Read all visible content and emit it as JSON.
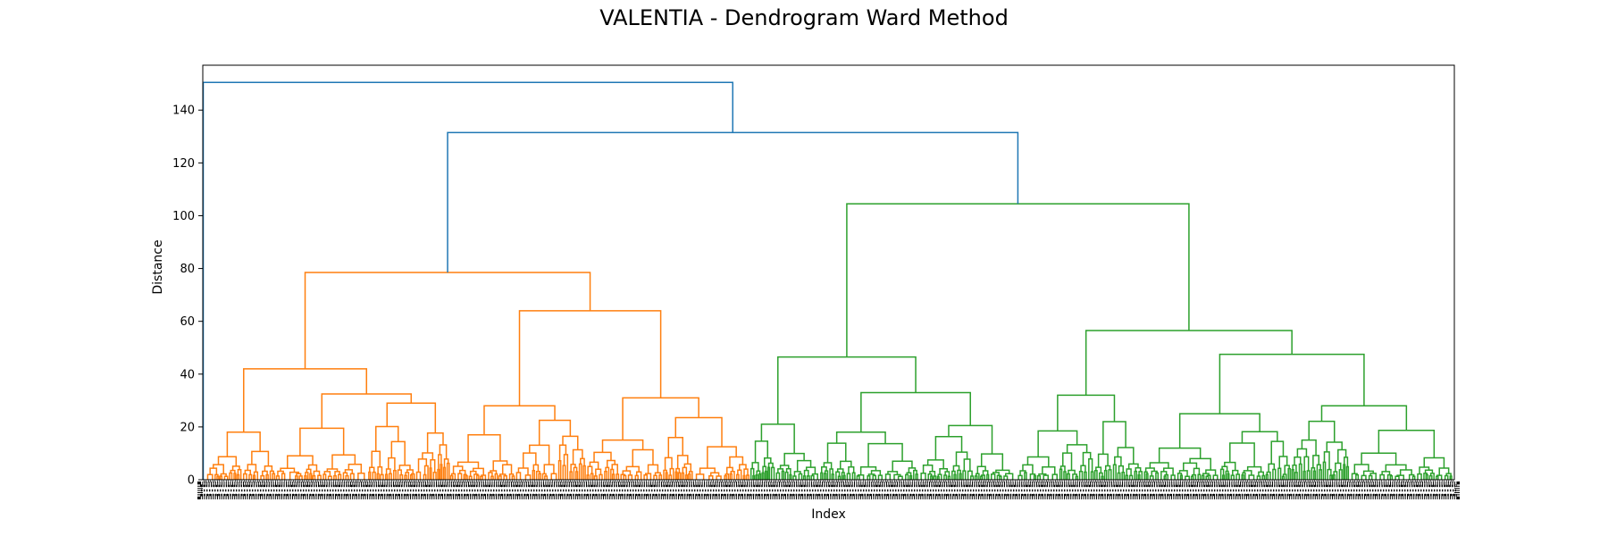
{
  "chart_data": {
    "type": "dendrogram",
    "title": "VALENTIA - Dendrogram Ward Method",
    "xlabel": "Index",
    "ylabel": "Distance",
    "ylim": [
      0,
      157
    ],
    "y_ticks": [
      0,
      20,
      40,
      60,
      80,
      100,
      120,
      140
    ],
    "grid": false,
    "leaf_labels_illegible": true,
    "colors": {
      "root_links": "#1f77b4",
      "cluster_1": "#ff7f0e",
      "cluster_2": "#2ca02c",
      "axes": "#000000"
    },
    "clusters": [
      {
        "color_key": "cluster_1",
        "leaf_fraction": 0.437
      },
      {
        "color_key": "cluster_2",
        "leaf_fraction": 0.563
      }
    ],
    "merges": [
      {
        "id": "root",
        "height": 150.5,
        "children": [
          "c1",
          "n131"
        ],
        "color_key": "root_links"
      },
      {
        "id": "n131",
        "height": 131.5,
        "children": [
          "o_root",
          "g_root"
        ],
        "color_key": "root_links"
      },
      {
        "id": "o_root",
        "height": 78.5,
        "children": [
          "o_A",
          "o_B"
        ],
        "color_key": "cluster_1"
      },
      {
        "id": "o_A",
        "height": 42,
        "children": [
          "o_A1",
          "o_A2"
        ],
        "color_key": "cluster_1"
      },
      {
        "id": "o_A1",
        "height": 18,
        "children": [],
        "color_key": "cluster_1"
      },
      {
        "id": "o_A2",
        "height": 32.5,
        "children": [
          "o_A2a",
          "o_A2b"
        ],
        "color_key": "cluster_1"
      },
      {
        "id": "o_A2a",
        "height": 19.5,
        "children": [],
        "color_key": "cluster_1"
      },
      {
        "id": "o_A2b",
        "height": 29,
        "children": [],
        "color_key": "cluster_1"
      },
      {
        "id": "o_B",
        "height": 64,
        "children": [
          "o_B1",
          "o_B2"
        ],
        "color_key": "cluster_1"
      },
      {
        "id": "o_B1",
        "height": 28,
        "children": [
          "o_B1a",
          "o_B1b"
        ],
        "color_key": "cluster_1"
      },
      {
        "id": "o_B1a",
        "height": 17,
        "children": [],
        "color_key": "cluster_1"
      },
      {
        "id": "o_B1b",
        "height": 22.5,
        "children": [],
        "color_key": "cluster_1"
      },
      {
        "id": "o_B2",
        "height": 31,
        "children": [
          "o_B2a",
          "o_B2b"
        ],
        "color_key": "cluster_1"
      },
      {
        "id": "o_B2a",
        "height": 15,
        "children": [],
        "color_key": "cluster_1"
      },
      {
        "id": "o_B2b",
        "height": 23.5,
        "children": [],
        "color_key": "cluster_1"
      },
      {
        "id": "g_root",
        "height": 104.5,
        "children": [
          "g_A",
          "g_B"
        ],
        "color_key": "cluster_2"
      },
      {
        "id": "g_A",
        "height": 46.5,
        "children": [
          "g_A1",
          "g_A2"
        ],
        "color_key": "cluster_2"
      },
      {
        "id": "g_A1",
        "height": 21,
        "children": [],
        "color_key": "cluster_2"
      },
      {
        "id": "g_A2",
        "height": 33,
        "children": [
          "g_A2a",
          "g_A2b"
        ],
        "color_key": "cluster_2"
      },
      {
        "id": "g_A2a",
        "height": 18,
        "children": [],
        "color_key": "cluster_2"
      },
      {
        "id": "g_A2b",
        "height": 20.5,
        "children": [],
        "color_key": "cluster_2"
      },
      {
        "id": "g_B",
        "height": 56.5,
        "children": [
          "g_B1",
          "g_B2"
        ],
        "color_key": "cluster_2"
      },
      {
        "id": "g_B1",
        "height": 32,
        "children": [
          "g_B1a",
          "g_B1b"
        ],
        "color_key": "cluster_2"
      },
      {
        "id": "g_B1a",
        "height": 18.5,
        "children": [],
        "color_key": "cluster_2"
      },
      {
        "id": "g_B1b",
        "height": 22,
        "children": [],
        "color_key": "cluster_2"
      },
      {
        "id": "g_B2",
        "height": 47.5,
        "children": [
          "g_B2a",
          "g_B2b"
        ],
        "color_key": "cluster_2"
      },
      {
        "id": "g_B2a",
        "height": 25,
        "children": [],
        "color_key": "cluster_2"
      },
      {
        "id": "g_B2b",
        "height": 28,
        "children": [],
        "color_key": "cluster_2"
      }
    ]
  }
}
